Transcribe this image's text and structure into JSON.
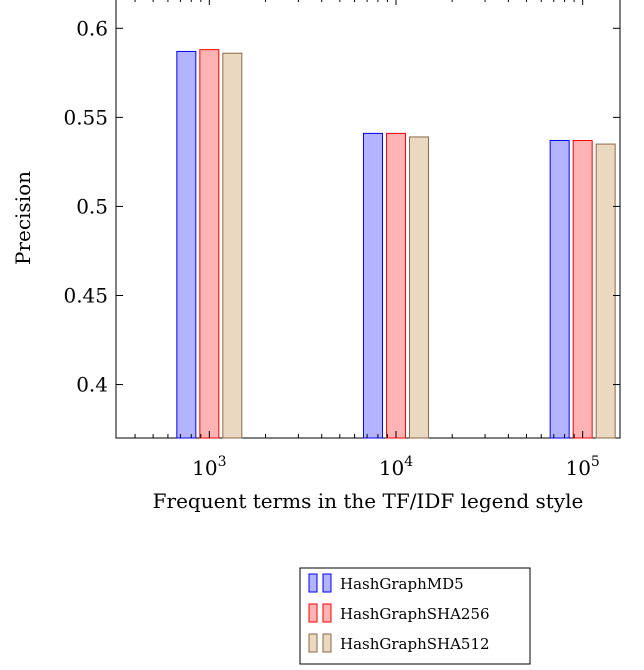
{
  "chart_data": {
    "type": "bar",
    "x_scale": "log",
    "categories": [
      "10^3",
      "10^4",
      "10^5"
    ],
    "x": [
      1000,
      10000,
      100000
    ],
    "x_tick_labels": [
      {
        "base": "10",
        "exp": "3"
      },
      {
        "base": "10",
        "exp": "4"
      },
      {
        "base": "10",
        "exp": "5"
      }
    ],
    "series": [
      {
        "name": "HashGraphMD5",
        "values": [
          0.587,
          0.541,
          0.537
        ],
        "fill": "#b3b3ff",
        "stroke": "#0000ff"
      },
      {
        "name": "HashGraphSHA256",
        "values": [
          0.588,
          0.541,
          0.537
        ],
        "fill": "#ffb3b3",
        "stroke": "#ff0000"
      },
      {
        "name": "HashGraphSHA512",
        "values": [
          0.586,
          0.539,
          0.535
        ],
        "fill": "#ead8c1",
        "stroke": "#8b6a4a"
      }
    ],
    "xlabel": "Frequent terms in the TF/IDF legend style",
    "ylabel": "Precision",
    "ylim": [
      0.37,
      0.617
    ],
    "y_ticks": [
      "0.4",
      "0.45",
      "0.5",
      "0.55",
      "0.6"
    ],
    "grid": false,
    "legend_position": "below"
  }
}
